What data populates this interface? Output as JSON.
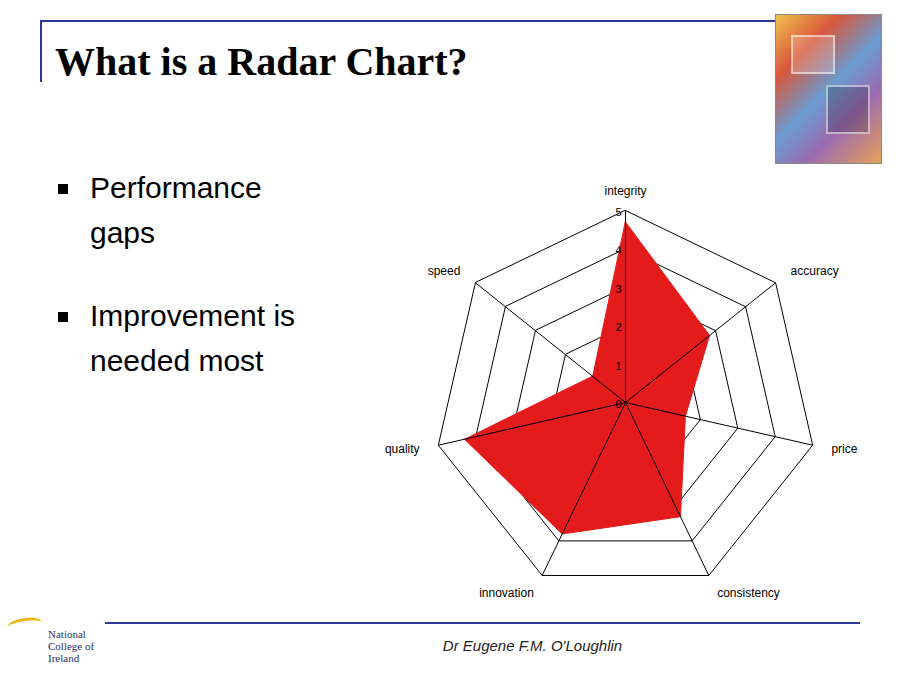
{
  "title": "What is a Radar Chart?",
  "bullets": [
    "Performance gaps",
    "Improvement is needed most"
  ],
  "footer": "Dr Eugene F.M. O'Loughlin",
  "logo": "National College of Ireland",
  "chart_data": {
    "type": "radar",
    "categories": [
      "integrity",
      "accuracy",
      "price",
      "consistency",
      "innovation",
      "quality",
      "speed"
    ],
    "values": [
      4.7,
      2.8,
      1.6,
      3.3,
      3.8,
      4.3,
      1.1
    ],
    "color": "#e31b1b",
    "ylim": [
      0,
      5
    ],
    "yticks": [
      0,
      1,
      2,
      3,
      4,
      5
    ],
    "grid": true
  }
}
